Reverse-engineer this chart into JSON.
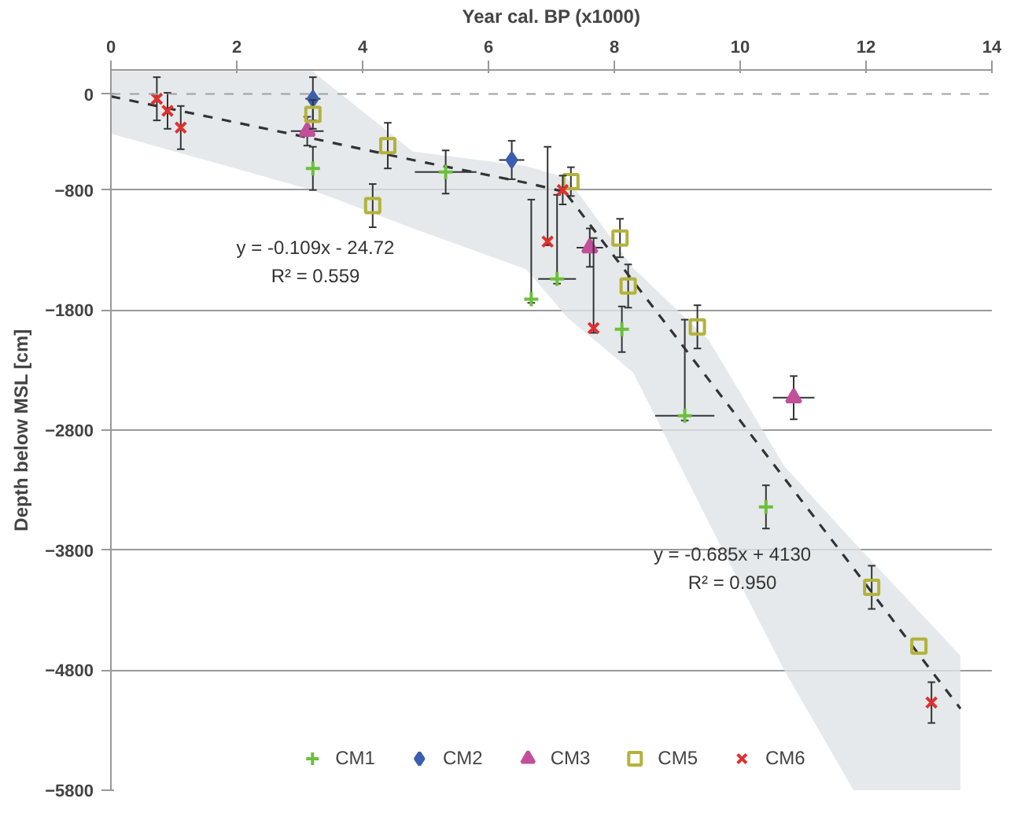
{
  "chart_data": {
    "type": "scatter",
    "xlabel": "Year cal. BP (x1000)",
    "ylabel": "Depth below MSL [cm]",
    "xlim": [
      0,
      14
    ],
    "xticks": [
      0,
      2,
      4,
      6,
      8,
      10,
      12,
      14
    ],
    "ylim": [
      -5800,
      200
    ],
    "yticks": [
      0,
      -800,
      -1800,
      -2800,
      -3800,
      -4800,
      -5800
    ],
    "grid": "y",
    "legend": "bottom",
    "ref_lines": [
      {
        "axis": "y",
        "value": 0,
        "color": "#a0a0a0",
        "line_style": "dashed"
      }
    ],
    "annotations": [
      "y = -0.109x - 24.72",
      "R² = 0.559",
      "y = -0.685x + 4130",
      "R² = 0.950"
    ],
    "series": [
      {
        "type": "line",
        "color": "#333333",
        "line_style": "dashed",
        "x": [
          0,
          3.2,
          4.8,
          6.6,
          7.25
        ],
        "values": [
          -20,
          -370,
          -550,
          -740,
          -820
        ],
        "upper": [
          190,
          190,
          -480,
          -600,
          -700
        ],
        "lower": [
          -330,
          -800,
          -1120,
          -1460,
          -1860
        ]
      },
      {
        "type": "line",
        "color": "#333333",
        "line_style": "dashed",
        "x": [
          7.25,
          8.3,
          9.5,
          10.7,
          11.8,
          13,
          13.5
        ],
        "values": [
          -840,
          -1560,
          -2380,
          -3200,
          -3950,
          -4780,
          -5120
        ],
        "upper": [
          -700,
          -1450,
          -2050,
          -3100,
          -3730,
          -4400,
          -4680
        ],
        "lower": [
          -1860,
          -2320,
          -3570,
          -4800,
          -5800,
          -5800,
          -5800
        ]
      },
      {
        "name": "CM1",
        "color": "#6cbf3c",
        "marker": "cross",
        "x": [
          3.21,
          5.32,
          6.68,
          7.09,
          8.12,
          9.12,
          10.41
        ],
        "values": [
          -620,
          -650,
          -1710,
          -1540,
          -1960,
          -2680,
          -3440
        ],
        "errors": [
          180,
          180,
          [
            -1740,
            -880
          ],
          [
            -1580,
            -840
          ],
          190,
          [
            -2720,
            -1880
          ],
          180
        ],
        "xerrors": [
          null,
          0.49,
          null,
          0.3,
          null,
          0.47,
          null
        ]
      },
      {
        "name": "CM2",
        "color": "#3b5fae",
        "marker": "diamond",
        "x": [
          3.21,
          6.37
        ],
        "values": [
          -40,
          -550
        ],
        "errors": [
          180,
          160
        ],
        "xerrors": [
          0.12,
          0.2
        ]
      },
      {
        "name": "CM3",
        "color": "#c24f9a",
        "marker": "triangle",
        "x": [
          3.12,
          7.61,
          10.85
        ],
        "values": [
          -310,
          -1280,
          -2530
        ],
        "errors": [
          120,
          160,
          180
        ],
        "xerrors": [
          0.26,
          0.21,
          0.33
        ]
      },
      {
        "name": "CM5",
        "color": "#b3b23a",
        "marker": "square",
        "x": [
          3.21,
          4.4,
          4.16,
          7.31,
          8.09,
          8.22,
          9.32,
          12.09,
          12.84
        ],
        "values": [
          -170,
          -430,
          -930,
          -730,
          -1200,
          -1600,
          -1940,
          -4110,
          -4600
        ],
        "errors": [
          120,
          190,
          180,
          120,
          160,
          180,
          180,
          180,
          null
        ]
      },
      {
        "name": "CM6",
        "color": "#e0302e",
        "marker": "x",
        "x": [
          0.73,
          0.9,
          1.11,
          7.18,
          6.94,
          7.67,
          13.04
        ],
        "values": [
          -40,
          -140,
          -280,
          -800,
          -1230,
          -1950,
          -5070
        ],
        "errors": [
          180,
          150,
          180,
          120,
          [
            -1260,
            -440
          ],
          [
            -1990,
            -1200
          ],
          170
        ]
      }
    ]
  }
}
